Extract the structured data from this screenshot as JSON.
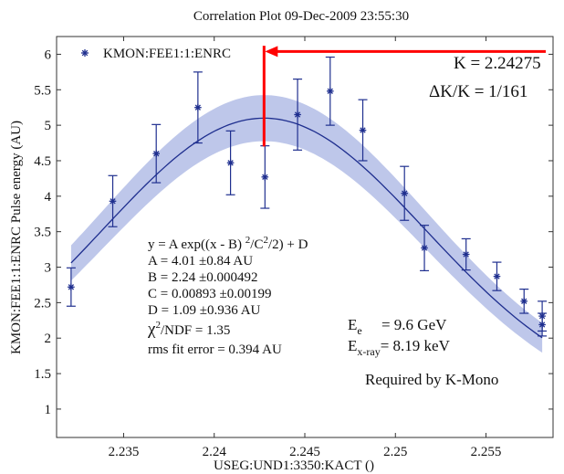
{
  "chart_data": {
    "type": "scatter",
    "title": "Correlation Plot 09-Dec-2009 23:55:30",
    "xlabel": "USEG:UND1:3350:KACT  ()",
    "ylabel": "KMON:FEE1:1:ENRC Pulse energy (AU)",
    "xlim": [
      2.2313,
      2.2587
    ],
    "ylim": [
      0.6,
      6.25
    ],
    "x_ticks": [
      2.235,
      2.24,
      2.245,
      2.25,
      2.255
    ],
    "x_tick_labels": [
      "2.235",
      "2.24",
      "2.245",
      "2.25",
      "2.255"
    ],
    "y_ticks": [
      1,
      1.5,
      2,
      2.5,
      3,
      3.5,
      4,
      4.5,
      5,
      5.5,
      6
    ],
    "y_tick_labels": [
      "1",
      "1.5",
      "2",
      "2.5",
      "3",
      "3.5",
      "4",
      "4.5",
      "5",
      "5.5",
      "6"
    ],
    "grid": false,
    "legend": {
      "position": "top-left",
      "entries": [
        "KMON:FEE1:1:ENRC"
      ]
    },
    "series": [
      {
        "name": "KMON:FEE1:1:ENRC",
        "color": "#1f2f8f",
        "marker": "asterisk",
        "x": [
          2.2321,
          2.2344,
          2.2368,
          2.2391,
          2.2409,
          2.2428,
          2.2446,
          2.2464,
          2.2482,
          2.2505,
          2.2516,
          2.2539,
          2.2556,
          2.2571,
          2.2581
        ],
        "y": [
          2.72,
          3.93,
          4.6,
          5.25,
          4.47,
          4.27,
          5.15,
          5.48,
          4.93,
          4.04,
          3.27,
          3.18,
          2.87,
          2.52,
          2.19
        ],
        "yerr": [
          0.27,
          0.36,
          0.41,
          0.5,
          0.45,
          0.44,
          0.5,
          0.48,
          0.43,
          0.38,
          0.32,
          0.22,
          0.2,
          0.17,
          0.16
        ]
      },
      {
        "name": "",
        "x": [
          2.2581
        ],
        "y": [
          2.31
        ],
        "yerr": [
          0.21
        ],
        "color": "#1f2f8f",
        "marker": "asterisk"
      }
    ],
    "fit": {
      "model": "gaussian",
      "A": 4.01,
      "B": 2.24275,
      "C": 0.00893,
      "D": 1.09,
      "x_range": [
        2.2321,
        2.2581
      ],
      "band_halfwidth": 0.25,
      "line_color": "#1f2f8f",
      "band_color": "#b3bde6"
    },
    "marker_line": {
      "x": 2.24275,
      "y_range": [
        4.7,
        6.12
      ],
      "arrow_y": 6.04,
      "color": "#ff0000"
    },
    "annotations": {
      "k_value": "K = 2.24275",
      "dk_prefix": "ΔK/K = ",
      "dk_value": "1/161",
      "fit_equation": "y = A exp((x - B) ",
      "fit_eq_sup1": "2",
      "fit_eq_mid": "/C",
      "fit_eq_sup2": "2",
      "fit_eq_end": "/2) + D",
      "fit_A": "A = 4.01 ±0.84 AU",
      "fit_B": "B =  2.24 ±0.000492",
      "fit_C": "C = 0.00893 ±0.00199",
      "fit_D": "D = 1.09 ±0.936 AU",
      "chi_symbol": "χ",
      "chi_sup": "2",
      "chi_rest": "/NDF =  1.35",
      "rms": "rms fit error = 0.394 AU",
      "ee_letter": "E",
      "ee_sub": "e",
      "ee_value": "     = 9.6 GeV",
      "ex_letter": "E",
      "ex_sub": "x-ray",
      "ex_value": "= 8.19 keV",
      "required": "Required by K-Mono"
    }
  }
}
